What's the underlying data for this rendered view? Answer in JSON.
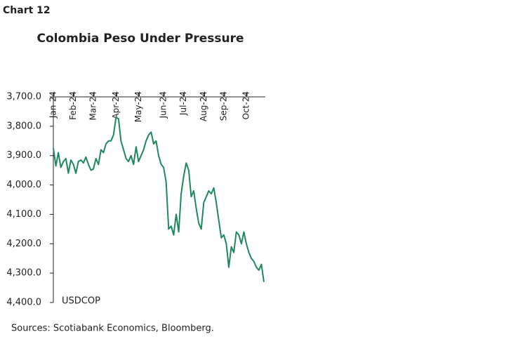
{
  "label": "Chart 12",
  "source": "Sources: Scotiabank Economics, Bloomberg.",
  "chart_data": {
    "type": "line",
    "title": "Colombia Peso Under Pressure",
    "inverted": true,
    "categories": [
      "Jan-24",
      null,
      null,
      null,
      null,
      null,
      null,
      null,
      "Feb-24",
      null,
      null,
      null,
      null,
      null,
      null,
      null,
      "Mar-24",
      null,
      null,
      null,
      null,
      null,
      null,
      null,
      null,
      "Apr-24",
      null,
      null,
      null,
      null,
      null,
      null,
      null,
      null,
      "May-24",
      null,
      null,
      null,
      null,
      null,
      null,
      null,
      null,
      null,
      "Jun-24",
      null,
      null,
      null,
      null,
      null,
      null,
      null,
      "Jul-24",
      null,
      null,
      null,
      null,
      null,
      null,
      null,
      "Aug-24",
      null,
      null,
      null,
      null,
      null,
      null,
      null,
      "Sep-24",
      null,
      null,
      null,
      null,
      null,
      null,
      null,
      null,
      "Oct-24",
      null,
      null,
      null,
      null,
      null,
      null,
      null
    ],
    "series": [
      {
        "name": "USDCOP",
        "color": "#1e8a5c",
        "values": [
          3875,
          3935,
          3890,
          3940,
          3920,
          3910,
          3960,
          3915,
          3930,
          3960,
          3920,
          3915,
          3925,
          3905,
          3930,
          3950,
          3945,
          3910,
          3930,
          3880,
          3890,
          3860,
          3850,
          3850,
          3830,
          3770,
          3775,
          3850,
          3880,
          3910,
          3920,
          3900,
          3930,
          3870,
          3920,
          3900,
          3880,
          3850,
          3830,
          3820,
          3860,
          3850,
          3900,
          3930,
          3940,
          3990,
          4150,
          4140,
          4170,
          4100,
          4160,
          4030,
          3970,
          3925,
          3950,
          4040,
          4020,
          4080,
          4130,
          4150,
          4060,
          4040,
          4020,
          4030,
          4010,
          4060,
          4120,
          4180,
          4170,
          4200,
          4280,
          4210,
          4230,
          4160,
          4170,
          4200,
          4160,
          4200,
          4230,
          4250,
          4260,
          4280,
          4290,
          4270,
          4330
        ]
      }
    ],
    "ylim": [
      3700,
      4400
    ],
    "yticks": [
      {
        "value": 3700,
        "label": "3,700.0"
      },
      {
        "value": 3800,
        "label": "3,800.0"
      },
      {
        "value": 3900,
        "label": "3,900.0"
      },
      {
        "value": 4000,
        "label": "4,000.0"
      },
      {
        "value": 4100,
        "label": "4,100.0"
      },
      {
        "value": 4200,
        "label": "4,200.0"
      },
      {
        "value": 4300,
        "label": "4,300.0"
      },
      {
        "value": 4400,
        "label": "4,400.0"
      }
    ]
  }
}
